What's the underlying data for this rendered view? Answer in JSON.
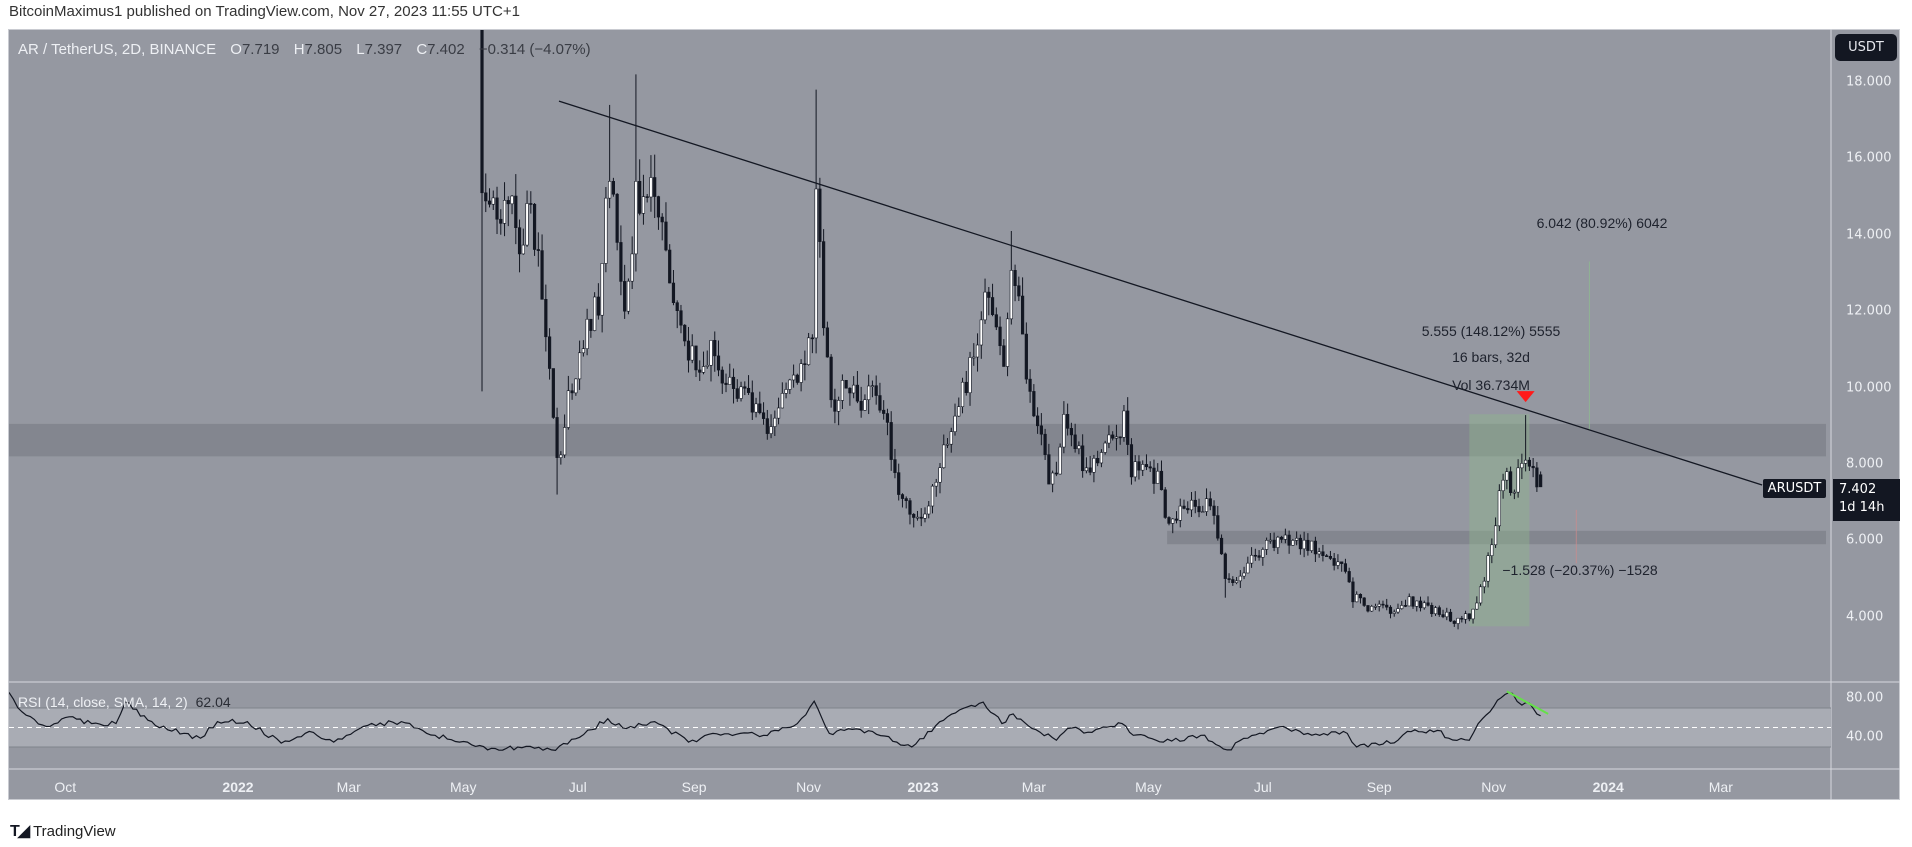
{
  "publish_line": "BitcoinMaximus1 published on TradingView.com, Nov 27, 2023 11:55 UTC+1",
  "legend": {
    "symbol": "AR / TetherUS, 2D, BINANCE",
    "o_label": "O",
    "o": "7.719",
    "h_label": "H",
    "h": "7.805",
    "l_label": "L",
    "l": "7.397",
    "c_label": "C",
    "c": "7.402",
    "change": "−0.314 (−4.07%)"
  },
  "currency_button": "USDT",
  "price_axis_labels": [
    "18.000",
    "16.000",
    "14.000",
    "12.000",
    "10.000",
    "8.000",
    "6.000",
    "4.000"
  ],
  "rsi_axis_labels": [
    "80.00",
    "40.00"
  ],
  "symbol_tag": "ARUSDT",
  "last_price": "7.402",
  "countdown": "1d 14h",
  "annotations": {
    "measure_up": "6.042 (80.92%) 6042",
    "measure_main": "5.555 (148.12%) 5555",
    "measure_bars": "16 bars, 32d",
    "measure_vol": "Vol 36.734M",
    "measure_down": "−1.528 (−20.37%) −1528"
  },
  "rsi_legend": {
    "label": "RSI (14, close, SMA, 14, 2)",
    "value": "62.04"
  },
  "time_axis": [
    {
      "label": "Oct",
      "date": "2021-10-01",
      "bold": false
    },
    {
      "label": "2022",
      "date": "2022-01-01",
      "bold": true
    },
    {
      "label": "Mar",
      "date": "2022-03-01",
      "bold": false
    },
    {
      "label": "May",
      "date": "2022-05-01",
      "bold": false
    },
    {
      "label": "Jul",
      "date": "2022-07-01",
      "bold": false
    },
    {
      "label": "Sep",
      "date": "2022-09-01",
      "bold": false
    },
    {
      "label": "Nov",
      "date": "2022-11-01",
      "bold": false
    },
    {
      "label": "2023",
      "date": "2023-01-01",
      "bold": true
    },
    {
      "label": "Mar",
      "date": "2023-03-01",
      "bold": false
    },
    {
      "label": "May",
      "date": "2023-05-01",
      "bold": false
    },
    {
      "label": "Jul",
      "date": "2023-07-01",
      "bold": false
    },
    {
      "label": "Sep",
      "date": "2023-09-01",
      "bold": false
    },
    {
      "label": "Nov",
      "date": "2023-11-01",
      "bold": false
    },
    {
      "label": "2024",
      "date": "2024-01-01",
      "bold": true
    },
    {
      "label": "Mar",
      "date": "2024-03-01",
      "bold": false
    }
  ],
  "footer_brand": "TradingView",
  "colors": {
    "background": "#9598a1",
    "up_body": "#ffffff",
    "down_body": "#131722",
    "wick": "#131722",
    "zone": "#80838c",
    "measure_fill": "#8fb58f",
    "arrow": "#ff1a1a",
    "rsi_line": "#131722",
    "rsi_band": "#a9acb4",
    "rsi_diverge": "#66e04a"
  },
  "chart_data": {
    "type": "candlestick",
    "symbol": "ARUSDT",
    "interval": "2D",
    "price_range": [
      2.8,
      19.2
    ],
    "rsi_range": [
      0,
      100
    ],
    "candle_start": "2022-05-11",
    "candle_end": "2023-11-26",
    "first_open": 19.5,
    "close_waypoints": [
      [
        "2022-05-11",
        15.1
      ],
      [
        "2022-05-15",
        14.8
      ],
      [
        "2022-05-21",
        14.3
      ],
      [
        "2022-05-26",
        15.3
      ],
      [
        "2022-05-31",
        13.5
      ],
      [
        "2022-06-06",
        14.8
      ],
      [
        "2022-06-11",
        13.0
      ],
      [
        "2022-06-16",
        10.5
      ],
      [
        "2022-06-19",
        8.2
      ],
      [
        "2022-06-21",
        7.6
      ],
      [
        "2022-06-25",
        9.5
      ],
      [
        "2022-07-01",
        10.5
      ],
      [
        "2022-07-07",
        11.7
      ],
      [
        "2022-07-13",
        12.4
      ],
      [
        "2022-07-15",
        14.0
      ],
      [
        "2022-07-18",
        15.4
      ],
      [
        "2022-07-22",
        13.8
      ],
      [
        "2022-07-26",
        12.0
      ],
      [
        "2022-07-30",
        13.5
      ],
      [
        "2022-08-01",
        15.4
      ],
      [
        "2022-08-06",
        14.3
      ],
      [
        "2022-08-09",
        15.5
      ],
      [
        "2022-08-14",
        14.5
      ],
      [
        "2022-08-18",
        12.8
      ],
      [
        "2022-08-24",
        12.3
      ],
      [
        "2022-08-30",
        10.8
      ],
      [
        "2022-09-04",
        10.4
      ],
      [
        "2022-09-09",
        11.0
      ],
      [
        "2022-09-15",
        10.2
      ],
      [
        "2022-09-23",
        9.8
      ],
      [
        "2022-10-01",
        9.6
      ],
      [
        "2022-10-09",
        8.8
      ],
      [
        "2022-10-14",
        9.2
      ],
      [
        "2022-10-22",
        10.2
      ],
      [
        "2022-10-30",
        10.6
      ],
      [
        "2022-11-03",
        11.3
      ],
      [
        "2022-11-05",
        15.2
      ],
      [
        "2022-11-08",
        12.5
      ],
      [
        "2022-11-11",
        10.8
      ],
      [
        "2022-11-14",
        9.0
      ],
      [
        "2022-11-20",
        10.2
      ],
      [
        "2022-11-28",
        9.6
      ],
      [
        "2022-12-06",
        9.8
      ],
      [
        "2022-12-14",
        8.7
      ],
      [
        "2022-12-19",
        7.2
      ],
      [
        "2022-12-27",
        6.6
      ],
      [
        "2023-01-04",
        6.9
      ],
      [
        "2023-01-12",
        8.5
      ],
      [
        "2023-01-20",
        9.5
      ],
      [
        "2023-01-28",
        10.8
      ],
      [
        "2023-02-03",
        12.5
      ],
      [
        "2023-02-08",
        12.0
      ],
      [
        "2023-02-12",
        10.5
      ],
      [
        "2023-02-15",
        11.8
      ],
      [
        "2023-02-18",
        13.3
      ],
      [
        "2023-02-22",
        11.6
      ],
      [
        "2023-02-27",
        9.9
      ],
      [
        "2023-03-03",
        9.0
      ],
      [
        "2023-03-06",
        8.4
      ],
      [
        "2023-03-10",
        7.5
      ],
      [
        "2023-03-14",
        8.0
      ],
      [
        "2023-03-17",
        9.3
      ],
      [
        "2023-03-23",
        8.4
      ],
      [
        "2023-03-29",
        7.9
      ],
      [
        "2023-04-07",
        8.5
      ],
      [
        "2023-04-15",
        8.8
      ],
      [
        "2023-04-19",
        9.3
      ],
      [
        "2023-04-21",
        7.9
      ],
      [
        "2023-05-01",
        7.7
      ],
      [
        "2023-05-07",
        7.6
      ],
      [
        "2023-05-10",
        6.6
      ],
      [
        "2023-05-22",
        6.8
      ],
      [
        "2023-06-03",
        6.9
      ],
      [
        "2023-06-08",
        6.1
      ],
      [
        "2023-06-11",
        5.0
      ],
      [
        "2023-06-20",
        5.0
      ],
      [
        "2023-06-27",
        5.6
      ],
      [
        "2023-07-06",
        5.9
      ],
      [
        "2023-07-17",
        6.0
      ],
      [
        "2023-07-24",
        5.9
      ],
      [
        "2023-08-02",
        5.6
      ],
      [
        "2023-08-13",
        5.4
      ],
      [
        "2023-08-17",
        4.6
      ],
      [
        "2023-08-23",
        4.3
      ],
      [
        "2023-09-06",
        4.2
      ],
      [
        "2023-09-16",
        4.4
      ],
      [
        "2023-09-27",
        4.3
      ],
      [
        "2023-10-05",
        4.0
      ],
      [
        "2023-10-16",
        3.9
      ],
      [
        "2023-10-21",
        4.2
      ],
      [
        "2023-10-26",
        4.8
      ],
      [
        "2023-10-29",
        5.6
      ],
      [
        "2023-11-01",
        6.1
      ],
      [
        "2023-11-04",
        7.3
      ],
      [
        "2023-11-08",
        7.8
      ],
      [
        "2023-11-11",
        7.2
      ],
      [
        "2023-11-14",
        7.9
      ],
      [
        "2023-11-18",
        8.1
      ],
      [
        "2023-11-22",
        7.9
      ],
      [
        "2023-11-26",
        7.402
      ]
    ],
    "wick_extremes": [
      {
        "date": "2022-05-11",
        "high": 21.0,
        "low": 9.9
      },
      {
        "date": "2022-06-21",
        "low": 7.2
      },
      {
        "date": "2022-07-18",
        "high": 17.4
      },
      {
        "date": "2022-08-01",
        "high": 18.2
      },
      {
        "date": "2022-11-05",
        "high": 17.8
      },
      {
        "date": "2023-02-18",
        "high": 14.1
      },
      {
        "date": "2023-06-11",
        "low": 4.5
      },
      {
        "date": "2023-11-18",
        "high": 9.28
      }
    ],
    "last_candle": {
      "open": 7.719,
      "high": 7.805,
      "low": 7.397,
      "close": 7.402
    },
    "trendline": {
      "start": [
        "2022-06-21",
        17.5
      ],
      "end": [
        "2024-03-23",
        7.45
      ]
    },
    "zones": [
      {
        "from": "start",
        "to": "end",
        "low": 8.2,
        "high": 9.05
      },
      {
        "from": "2023-05-11",
        "to": "end",
        "low": 5.9,
        "high": 6.25
      }
    ],
    "measure_box": {
      "from": "2023-10-19",
      "to": "2023-11-20",
      "low": 3.75,
      "high": 9.305
    },
    "resistance_arrow": {
      "date": "2023-11-18",
      "price": 9.75
    },
    "measure_lines": [
      {
        "date": "2023-12-22",
        "from": 8.9,
        "to": 13.3,
        "color": "green"
      },
      {
        "date": "2023-12-15",
        "from": 5.4,
        "to": 6.8,
        "color": "red"
      }
    ],
    "rsi": {
      "period": 14,
      "overbought": 70,
      "oversold": 30,
      "mid": 50,
      "points": [
        [
          "2021-09-01",
          86
        ],
        [
          "2021-09-08",
          66
        ],
        [
          "2021-09-21",
          51
        ],
        [
          "2021-10-03",
          61
        ],
        [
          "2021-10-15",
          54
        ],
        [
          "2021-10-28",
          54
        ],
        [
          "2021-11-02",
          76
        ],
        [
          "2021-11-18",
          52
        ],
        [
          "2021-12-12",
          39
        ],
        [
          "2021-12-21",
          56
        ],
        [
          "2022-01-06",
          56
        ],
        [
          "2022-01-24",
          34
        ],
        [
          "2022-02-08",
          46
        ],
        [
          "2022-02-21",
          35
        ],
        [
          "2022-03-11",
          52
        ],
        [
          "2022-03-29",
          56
        ],
        [
          "2022-04-16",
          42
        ],
        [
          "2022-04-29",
          35
        ],
        [
          "2022-05-14",
          27
        ],
        [
          "2022-05-30",
          30
        ],
        [
          "2022-06-17",
          27
        ],
        [
          "2022-07-02",
          40
        ],
        [
          "2022-07-17",
          59
        ],
        [
          "2022-07-27",
          49
        ],
        [
          "2022-08-11",
          56
        ],
        [
          "2022-08-29",
          35
        ],
        [
          "2022-09-11",
          44
        ],
        [
          "2022-10-08",
          42
        ],
        [
          "2022-10-14",
          47
        ],
        [
          "2022-10-26",
          54
        ],
        [
          "2022-11-04",
          77
        ],
        [
          "2022-11-12",
          44
        ],
        [
          "2022-11-20",
          47
        ],
        [
          "2022-12-05",
          46
        ],
        [
          "2022-12-18",
          35
        ],
        [
          "2022-12-26",
          30
        ],
        [
          "2023-01-14",
          61
        ],
        [
          "2023-02-02",
          76
        ],
        [
          "2023-02-12",
          54
        ],
        [
          "2023-02-18",
          64
        ],
        [
          "2023-02-28",
          49
        ],
        [
          "2023-03-13",
          37
        ],
        [
          "2023-03-19",
          49
        ],
        [
          "2023-04-01",
          45
        ],
        [
          "2023-04-17",
          54
        ],
        [
          "2023-04-23",
          42
        ],
        [
          "2023-05-09",
          35
        ],
        [
          "2023-05-29",
          42
        ],
        [
          "2023-06-12",
          27
        ],
        [
          "2023-06-23",
          39
        ],
        [
          "2023-07-12",
          51
        ],
        [
          "2023-07-25",
          44
        ],
        [
          "2023-08-15",
          44
        ],
        [
          "2023-08-20",
          30
        ],
        [
          "2023-09-01",
          32
        ],
        [
          "2023-09-11",
          37
        ],
        [
          "2023-09-16",
          46
        ],
        [
          "2023-10-02",
          47
        ],
        [
          "2023-10-08",
          39
        ],
        [
          "2023-10-19",
          37
        ],
        [
          "2023-10-26",
          59
        ],
        [
          "2023-11-03",
          78
        ],
        [
          "2023-11-11",
          85
        ],
        [
          "2023-11-16",
          73
        ],
        [
          "2023-11-20",
          75
        ],
        [
          "2023-11-26",
          62.04
        ]
      ],
      "divergence_line": [
        [
          "2023-11-08",
          87
        ],
        [
          "2023-11-30",
          64
        ]
      ]
    }
  }
}
